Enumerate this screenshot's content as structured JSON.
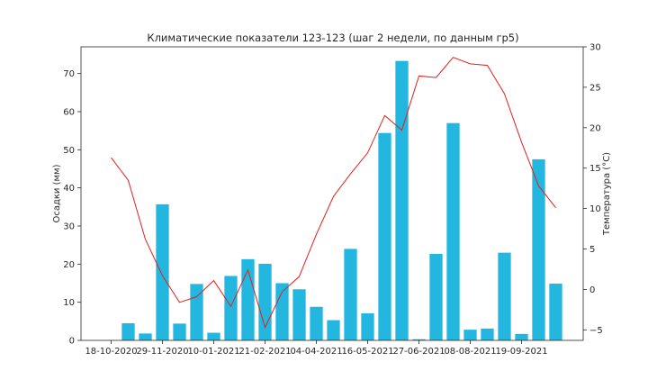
{
  "chart_data": {
    "type": "bar",
    "title": "Климатические показатели 123-123 (шаг 2 недели, по данным гр5)",
    "ylabel_left": "Осадки (мм)",
    "ylabel_right": "Температура (°C)",
    "xlabel": "",
    "grid": false,
    "x_tick_labels": [
      "18-10-2020",
      "29-11-2020",
      "10-01-2021",
      "21-02-2021",
      "04-04-2021",
      "16-05-2021",
      "27-06-2021",
      "08-08-2021",
      "19-09-2021"
    ],
    "x_tick_every": 3,
    "ylim_left": [
      0,
      77
    ],
    "ylim_right": [
      -6.3,
      30
    ],
    "yticks_left": [
      0,
      10,
      20,
      30,
      40,
      50,
      60,
      70
    ],
    "yticks_right": [
      -5,
      0,
      5,
      10,
      15,
      20,
      25,
      30
    ],
    "precipitation": {
      "name": "Осадки",
      "color": "#23b7e0",
      "values": [
        0,
        4.5,
        1.8,
        35.7,
        4.4,
        14.8,
        2.0,
        16.9,
        21.3,
        20.1,
        15.0,
        13.4,
        8.8,
        5.3,
        24.0,
        7.1,
        54.4,
        73.3,
        0.3,
        22.7,
        57.0,
        2.8,
        3.1,
        23.0,
        1.7,
        47.5,
        14.9
      ]
    },
    "temperature": {
      "name": "Температура",
      "color": "#e0201b",
      "values": [
        16.3,
        13.5,
        6.2,
        1.7,
        -1.6,
        -0.9,
        1.1,
        -2.1,
        2.4,
        -4.7,
        -0.3,
        1.6,
        6.8,
        11.5,
        14.3,
        16.9,
        21.5,
        19.7,
        26.4,
        26.2,
        28.7,
        27.9,
        27.7,
        24.2,
        18.2,
        12.8,
        10.1
      ]
    }
  }
}
